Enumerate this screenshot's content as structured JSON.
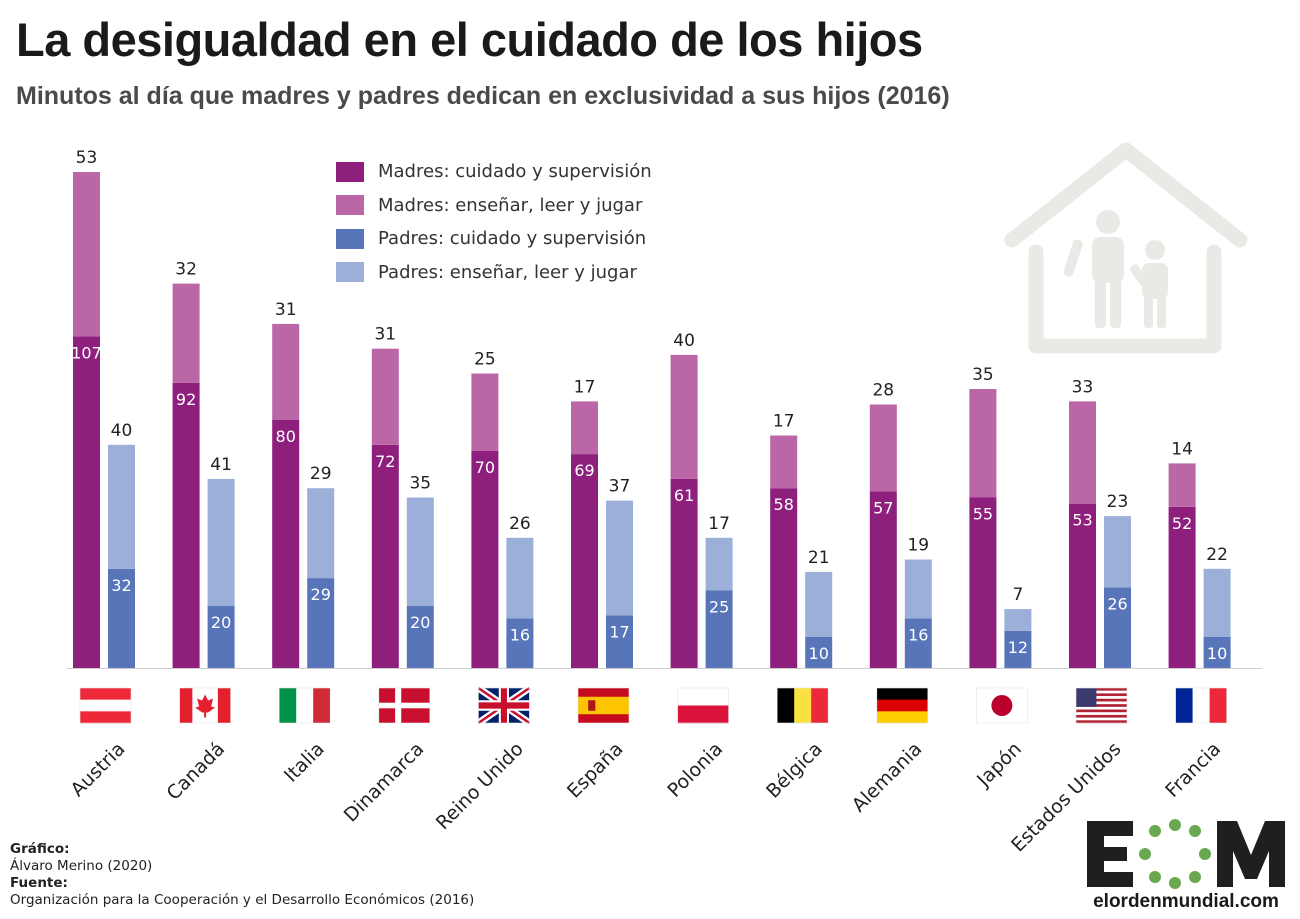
{
  "title": "La desigualdad en el cuidado de los hijos",
  "subtitle": "Minutos al día que madres y padres dedican en exclusividad a sus hijos (2016)",
  "legend": [
    {
      "label": "Madres: cuidado y supervisión",
      "color": "#8e1f7d"
    },
    {
      "label": "Madres: enseñar, leer y jugar",
      "color": "#bb66a6"
    },
    {
      "label": "Padres: cuidado y supervisión",
      "color": "#5875ba"
    },
    {
      "label": "Padres: enseñar, leer y jugar",
      "color": "#9cafd8"
    }
  ],
  "footer": {
    "grafico_label": "Gráfico:",
    "grafico_value": "Álvaro Merino (2020)",
    "fuente_label": "Fuente:",
    "fuente_value": "Organización para la Cooperación y el Desarrollo Económicos (2016)"
  },
  "logo": {
    "letters": "EOM",
    "url": "elordenmundial.com"
  },
  "icons": {
    "decor": "house-parent-child-icon"
  },
  "chart_data": {
    "type": "bar",
    "stacked": true,
    "categories": [
      "Austria",
      "Canadá",
      "Italia",
      "Dinamarca",
      "Reino Unido",
      "España",
      "Polonia",
      "Bélgica",
      "Alemania",
      "Japón",
      "Estados Unidos",
      "Francia"
    ],
    "flags": [
      "austria-flag",
      "canada-flag",
      "italy-flag",
      "denmark-flag",
      "uk-flag",
      "spain-flag",
      "poland-flag",
      "belgium-flag",
      "germany-flag",
      "japan-flag",
      "usa-flag",
      "france-flag"
    ],
    "series": [
      {
        "name": "Madres: cuidado y supervisión",
        "group": "Madres",
        "values": [
          107,
          92,
          80,
          72,
          70,
          69,
          61,
          58,
          57,
          55,
          53,
          52
        ]
      },
      {
        "name": "Madres: enseñar, leer y jugar",
        "group": "Madres",
        "values": [
          53,
          32,
          31,
          31,
          25,
          17,
          40,
          17,
          28,
          35,
          33,
          14
        ]
      },
      {
        "name": "Padres: cuidado y supervisión",
        "group": "Padres",
        "values": [
          32,
          20,
          29,
          20,
          16,
          17,
          25,
          10,
          16,
          12,
          26,
          10
        ]
      },
      {
        "name": "Padres: enseñar, leer y jugar",
        "group": "Padres",
        "values": [
          40,
          41,
          29,
          35,
          26,
          37,
          17,
          21,
          19,
          7,
          23,
          22
        ]
      }
    ],
    "legend_position": "top-left",
    "grid": false,
    "ylim": [
      0,
      160
    ]
  }
}
